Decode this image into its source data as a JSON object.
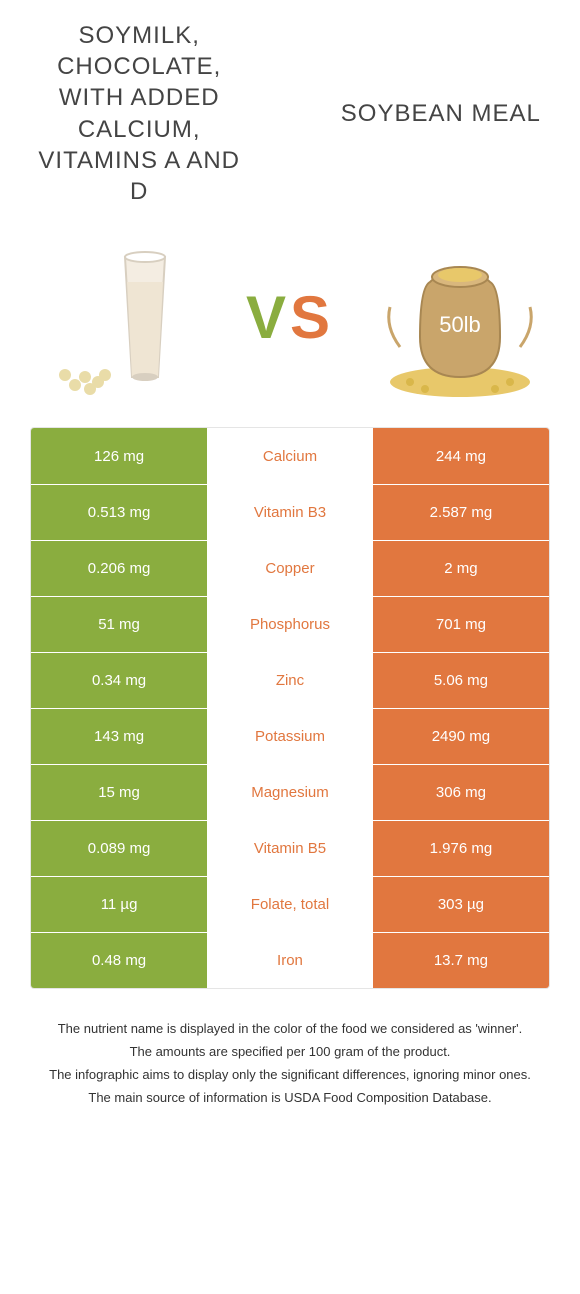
{
  "colors": {
    "left": "#8aad3f",
    "right": "#e1773f",
    "text": "#333333",
    "border": "#e5e5e5",
    "bg": "#ffffff"
  },
  "titles": {
    "left": "SOYMILK, CHOCOLATE, WITH ADDED CALCIUM, VITAMINS A AND D",
    "right": "SOYBEAN MEAL"
  },
  "vs": {
    "v": "V",
    "s": "S"
  },
  "images": {
    "left_alt": "glass of soymilk with soybeans",
    "right_alt": "50lb sack of soybean meal",
    "sack_label": "50lb"
  },
  "rows": [
    {
      "left": "126 mg",
      "name": "Calcium",
      "right": "244 mg",
      "winner": "right"
    },
    {
      "left": "0.513 mg",
      "name": "Vitamin B3",
      "right": "2.587 mg",
      "winner": "right"
    },
    {
      "left": "0.206 mg",
      "name": "Copper",
      "right": "2 mg",
      "winner": "right"
    },
    {
      "left": "51 mg",
      "name": "Phosphorus",
      "right": "701 mg",
      "winner": "right"
    },
    {
      "left": "0.34 mg",
      "name": "Zinc",
      "right": "5.06 mg",
      "winner": "right"
    },
    {
      "left": "143 mg",
      "name": "Potassium",
      "right": "2490 mg",
      "winner": "right"
    },
    {
      "left": "15 mg",
      "name": "Magnesium",
      "right": "306 mg",
      "winner": "right"
    },
    {
      "left": "0.089 mg",
      "name": "Vitamin B5",
      "right": "1.976 mg",
      "winner": "right"
    },
    {
      "left": "11 µg",
      "name": "Folate, total",
      "right": "303 µg",
      "winner": "right"
    },
    {
      "left": "0.48 mg",
      "name": "Iron",
      "right": "13.7 mg",
      "winner": "right"
    }
  ],
  "footnotes": [
    "The nutrient name is displayed in the color of the food we considered as 'winner'.",
    "The amounts are specified per 100 gram of the product.",
    "The infographic aims to display only the significant differences, ignoring minor ones.",
    "The main source of information is USDA Food Composition Database."
  ]
}
